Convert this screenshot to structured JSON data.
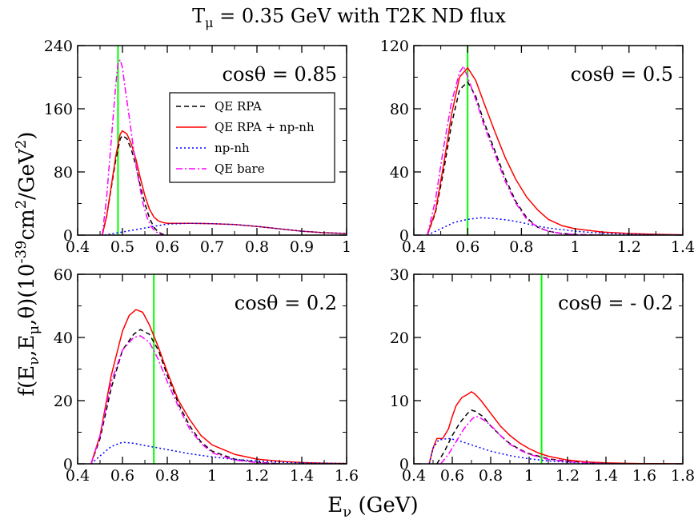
{
  "title": "T_μ = 0.35 GeV with T2K ND flux",
  "title_parts": {
    "main": "T",
    "sub": "μ",
    "rest": " = 0.35 GeV with T2K ND flux"
  },
  "xlabel_parts": {
    "main": "E",
    "sub": "ν",
    "rest": " (GeV)"
  },
  "ylabel_parts": [
    {
      "t": "f(E",
      "s": "n"
    },
    {
      "t": "ν",
      "s": "sub"
    },
    {
      "t": ",E",
      "s": "n"
    },
    {
      "t": "μ",
      "s": "sub"
    },
    {
      "t": ",θ)(10",
      "s": "n"
    },
    {
      "t": "-39",
      "s": "sup"
    },
    {
      "t": "cm",
      "s": "n"
    },
    {
      "t": "2",
      "s": "sup"
    },
    {
      "t": "/GeV",
      "s": "n"
    },
    {
      "t": "2",
      "s": "sup"
    },
    {
      "t": ")",
      "s": "n"
    }
  ],
  "legend": {
    "placement": "top-left panel, upper middle",
    "entries": [
      {
        "label": "QE RPA",
        "color": "#000000",
        "dash": "6,4"
      },
      {
        "label": "QE RPA + np-nh",
        "color": "#ff0000",
        "dash": ""
      },
      {
        "label": "np-nh",
        "color": "#0000ff",
        "dash": "2,3"
      },
      {
        "label": "QE bare",
        "color": "#ff00ff",
        "dash": "8,3,2,3"
      }
    ]
  },
  "vline_color": "#00ff00",
  "chart_data": [
    {
      "type": "line",
      "panel_label": "cosθ = 0.85",
      "xlim": [
        0.4,
        1.0
      ],
      "ylim": [
        0,
        240
      ],
      "xticks": [
        0.4,
        0.5,
        0.6,
        0.7,
        0.8,
        0.9,
        1.0
      ],
      "xtick_labels": [
        "0.4",
        "0.5",
        "0.6",
        "0.7",
        "0.8",
        "0.9",
        "1"
      ],
      "yticks": [
        0,
        80,
        160,
        240
      ],
      "ytick_labels": [
        "0",
        "80",
        "160",
        "240"
      ],
      "vline_x": 0.49,
      "series": [
        {
          "name": "QE RPA",
          "x": [
            0.455,
            0.465,
            0.475,
            0.485,
            0.495,
            0.5,
            0.51,
            0.52,
            0.53,
            0.54,
            0.55,
            0.56,
            0.57,
            0.58,
            0.59,
            0.6
          ],
          "y": [
            0,
            25,
            60,
            95,
            122,
            126,
            122,
            108,
            88,
            62,
            40,
            22,
            10,
            4,
            1,
            0
          ]
        },
        {
          "name": "QE RPA + np-nh",
          "x": [
            0.455,
            0.465,
            0.475,
            0.485,
            0.495,
            0.5,
            0.51,
            0.52,
            0.53,
            0.54,
            0.55,
            0.56,
            0.57,
            0.58,
            0.59,
            0.6,
            0.65,
            0.7,
            0.75,
            0.8,
            0.85,
            0.9,
            0.95,
            1.0
          ],
          "y": [
            0,
            25,
            62,
            100,
            128,
            132,
            128,
            115,
            96,
            72,
            50,
            33,
            23,
            18,
            16,
            15,
            15,
            14.5,
            13.5,
            11,
            8,
            5,
            3,
            2
          ]
        },
        {
          "name": "np-nh",
          "x": [
            0.46,
            0.5,
            0.55,
            0.58,
            0.6,
            0.65,
            0.7,
            0.75,
            0.8,
            0.85,
            0.9,
            0.95,
            1.0
          ],
          "y": [
            0,
            4,
            9,
            12,
            14,
            15,
            14.5,
            13.5,
            11,
            8,
            5,
            3,
            2
          ]
        },
        {
          "name": "QE bare",
          "x": [
            0.455,
            0.465,
            0.475,
            0.485,
            0.49,
            0.495,
            0.5,
            0.505,
            0.515,
            0.525,
            0.535,
            0.545,
            0.555,
            0.565,
            0.575,
            0.59
          ],
          "y": [
            0,
            50,
            120,
            190,
            218,
            222,
            212,
            190,
            150,
            108,
            72,
            42,
            22,
            10,
            4,
            0
          ]
        }
      ]
    },
    {
      "type": "line",
      "panel_label": "cosθ = 0.5",
      "xlim": [
        0.4,
        1.4
      ],
      "ylim": [
        0,
        120
      ],
      "xticks": [
        0.4,
        0.6,
        0.8,
        1.0,
        1.2,
        1.4
      ],
      "xtick_labels": [
        "0.4",
        "0.6",
        "0.8",
        "1",
        "1.2",
        "1.4"
      ],
      "yticks": [
        0,
        40,
        80,
        120
      ],
      "ytick_labels": [
        "0",
        "40",
        "80",
        "120"
      ],
      "vline_x": 0.6,
      "series": [
        {
          "name": "QE RPA",
          "x": [
            0.45,
            0.48,
            0.51,
            0.54,
            0.57,
            0.6,
            0.63,
            0.66,
            0.7,
            0.74,
            0.78,
            0.82,
            0.86,
            0.9,
            0.95,
            1.0,
            1.1
          ],
          "y": [
            0,
            14,
            40,
            70,
            92,
            97,
            88,
            72,
            54,
            36,
            21,
            11,
            5,
            2.5,
            1,
            0.4,
            0
          ]
        },
        {
          "name": "QE RPA + np-nh",
          "x": [
            0.45,
            0.48,
            0.51,
            0.54,
            0.57,
            0.6,
            0.63,
            0.66,
            0.7,
            0.74,
            0.78,
            0.82,
            0.86,
            0.9,
            0.95,
            1.0,
            1.1,
            1.2,
            1.3,
            1.4
          ],
          "y": [
            0,
            15,
            44,
            76,
            100,
            106,
            98,
            84,
            66,
            49,
            35,
            24,
            16,
            10,
            6,
            4,
            2,
            1,
            0.5,
            0.2
          ]
        },
        {
          "name": "np-nh",
          "x": [
            0.45,
            0.5,
            0.55,
            0.6,
            0.65,
            0.7,
            0.75,
            0.8,
            0.85,
            0.9,
            1.0,
            1.1,
            1.2,
            1.3,
            1.4
          ],
          "y": [
            0,
            4,
            8,
            10,
            11,
            10.5,
            9.5,
            8,
            6,
            4.5,
            2.5,
            1.2,
            0.6,
            0.3,
            0.1
          ]
        },
        {
          "name": "QE bare",
          "x": [
            0.45,
            0.48,
            0.51,
            0.54,
            0.57,
            0.585,
            0.6,
            0.63,
            0.66,
            0.7,
            0.74,
            0.78,
            0.82,
            0.86,
            0.9,
            0.95,
            1.0,
            1.1
          ],
          "y": [
            0,
            22,
            55,
            84,
            103,
            107,
            100,
            86,
            70,
            52,
            34,
            20,
            10,
            5,
            2.5,
            1,
            0.4,
            0
          ]
        }
      ]
    },
    {
      "type": "line",
      "panel_label": "cosθ = 0.2",
      "xlim": [
        0.4,
        1.6
      ],
      "ylim": [
        0,
        60
      ],
      "xticks": [
        0.4,
        0.6,
        0.8,
        1.0,
        1.2,
        1.4,
        1.6
      ],
      "xtick_labels": [
        "0.4",
        "0.6",
        "0.8",
        "1",
        "1.2",
        "1.4",
        "1.6"
      ],
      "yticks": [
        0,
        20,
        40,
        60
      ],
      "ytick_labels": [
        "0",
        "20",
        "40",
        "60"
      ],
      "vline_x": 0.74,
      "series": [
        {
          "name": "QE RPA",
          "x": [
            0.46,
            0.5,
            0.55,
            0.6,
            0.65,
            0.68,
            0.72,
            0.76,
            0.8,
            0.85,
            0.9,
            0.95,
            1.0,
            1.1,
            1.2,
            1.3
          ],
          "y": [
            0,
            8,
            24,
            36,
            41,
            42.5,
            41,
            36,
            28,
            19,
            12,
            7,
            4,
            1.5,
            0.5,
            0
          ]
        },
        {
          "name": "QE RPA + np-nh",
          "x": [
            0.46,
            0.5,
            0.55,
            0.6,
            0.63,
            0.66,
            0.69,
            0.72,
            0.76,
            0.8,
            0.85,
            0.9,
            0.95,
            1.0,
            1.1,
            1.2,
            1.3,
            1.4,
            1.5,
            1.6
          ],
          "y": [
            0,
            9,
            28,
            42,
            47,
            48.8,
            48,
            44,
            37,
            29,
            20,
            14,
            9,
            6,
            3,
            1.5,
            0.8,
            0.4,
            0.2,
            0.1
          ]
        },
        {
          "name": "np-nh",
          "x": [
            0.46,
            0.5,
            0.55,
            0.6,
            0.65,
            0.7,
            0.8,
            0.9,
            1.0,
            1.1,
            1.2,
            1.3,
            1.4,
            1.5,
            1.6
          ],
          "y": [
            0,
            2.5,
            5.5,
            6.8,
            6.5,
            5.8,
            4.5,
            3.2,
            2.2,
            1.4,
            0.9,
            0.5,
            0.3,
            0.2,
            0.1
          ]
        },
        {
          "name": "QE bare",
          "x": [
            0.46,
            0.5,
            0.55,
            0.6,
            0.65,
            0.68,
            0.72,
            0.76,
            0.8,
            0.85,
            0.9,
            0.95,
            1.0,
            1.1,
            1.2,
            1.3
          ],
          "y": [
            0,
            9,
            26,
            36,
            40,
            40.5,
            38.5,
            33,
            26,
            18,
            11,
            6.5,
            3.5,
            1.2,
            0.4,
            0
          ]
        }
      ]
    },
    {
      "type": "line",
      "panel_label": "cosθ = - 0.2",
      "xlim": [
        0.4,
        1.8
      ],
      "ylim": [
        0,
        30
      ],
      "xticks": [
        0.4,
        0.6,
        0.8,
        1.0,
        1.2,
        1.4,
        1.6,
        1.8
      ],
      "xtick_labels": [
        "0.4",
        "0.6",
        "0.8",
        "1",
        "1.2",
        "1.4",
        "1.6",
        "1.8"
      ],
      "yticks": [
        0,
        10,
        20,
        30
      ],
      "ytick_labels": [
        "0",
        "10",
        "20",
        "30"
      ],
      "vline_x": 1.065,
      "series": [
        {
          "name": "QE RPA",
          "x": [
            0.52,
            0.56,
            0.6,
            0.64,
            0.68,
            0.7,
            0.72,
            0.76,
            0.8,
            0.85,
            0.9,
            0.95,
            1.0,
            1.05,
            1.1,
            1.2,
            1.3,
            1.4
          ],
          "y": [
            0,
            2,
            4.5,
            6.5,
            8,
            8.5,
            8.3,
            7.5,
            6,
            4.5,
            3.2,
            2.3,
            1.6,
            1.2,
            0.8,
            0.4,
            0.2,
            0
          ]
        },
        {
          "name": "QE RPA + np-nh",
          "x": [
            0.48,
            0.5,
            0.52,
            0.55,
            0.58,
            0.6,
            0.62,
            0.65,
            0.68,
            0.7,
            0.72,
            0.75,
            0.8,
            0.85,
            0.9,
            0.95,
            1.0,
            1.05,
            1.1,
            1.2,
            1.3,
            1.4,
            1.5,
            1.6,
            1.7,
            1.8
          ],
          "y": [
            0,
            2.5,
            4,
            4,
            5.5,
            7.5,
            9.2,
            10.5,
            11,
            11.4,
            11,
            10,
            8,
            6,
            4.5,
            3.3,
            2.4,
            1.7,
            1.2,
            0.6,
            0.3,
            0.15,
            0.08,
            0.04,
            0.02,
            0
          ]
        },
        {
          "name": "np-nh",
          "x": [
            0.48,
            0.5,
            0.53,
            0.58,
            0.62,
            0.66,
            0.7,
            0.8,
            0.9,
            1.0,
            1.1,
            1.2,
            1.3,
            1.4,
            1.5
          ],
          "y": [
            0,
            2.5,
            3.8,
            4,
            3.8,
            3.4,
            3,
            2,
            1.3,
            0.8,
            0.45,
            0.25,
            0.12,
            0.05,
            0
          ]
        },
        {
          "name": "QE bare",
          "x": [
            0.54,
            0.58,
            0.62,
            0.66,
            0.7,
            0.72,
            0.74,
            0.78,
            0.82,
            0.86,
            0.9,
            0.95,
            1.0,
            1.05,
            1.1,
            1.2,
            1.3,
            1.4
          ],
          "y": [
            0,
            1.5,
            3.5,
            5.5,
            7,
            7.5,
            7.4,
            6.6,
            5.5,
            4.2,
            3.1,
            2.2,
            1.5,
            1.1,
            0.7,
            0.35,
            0.15,
            0
          ]
        }
      ]
    }
  ]
}
